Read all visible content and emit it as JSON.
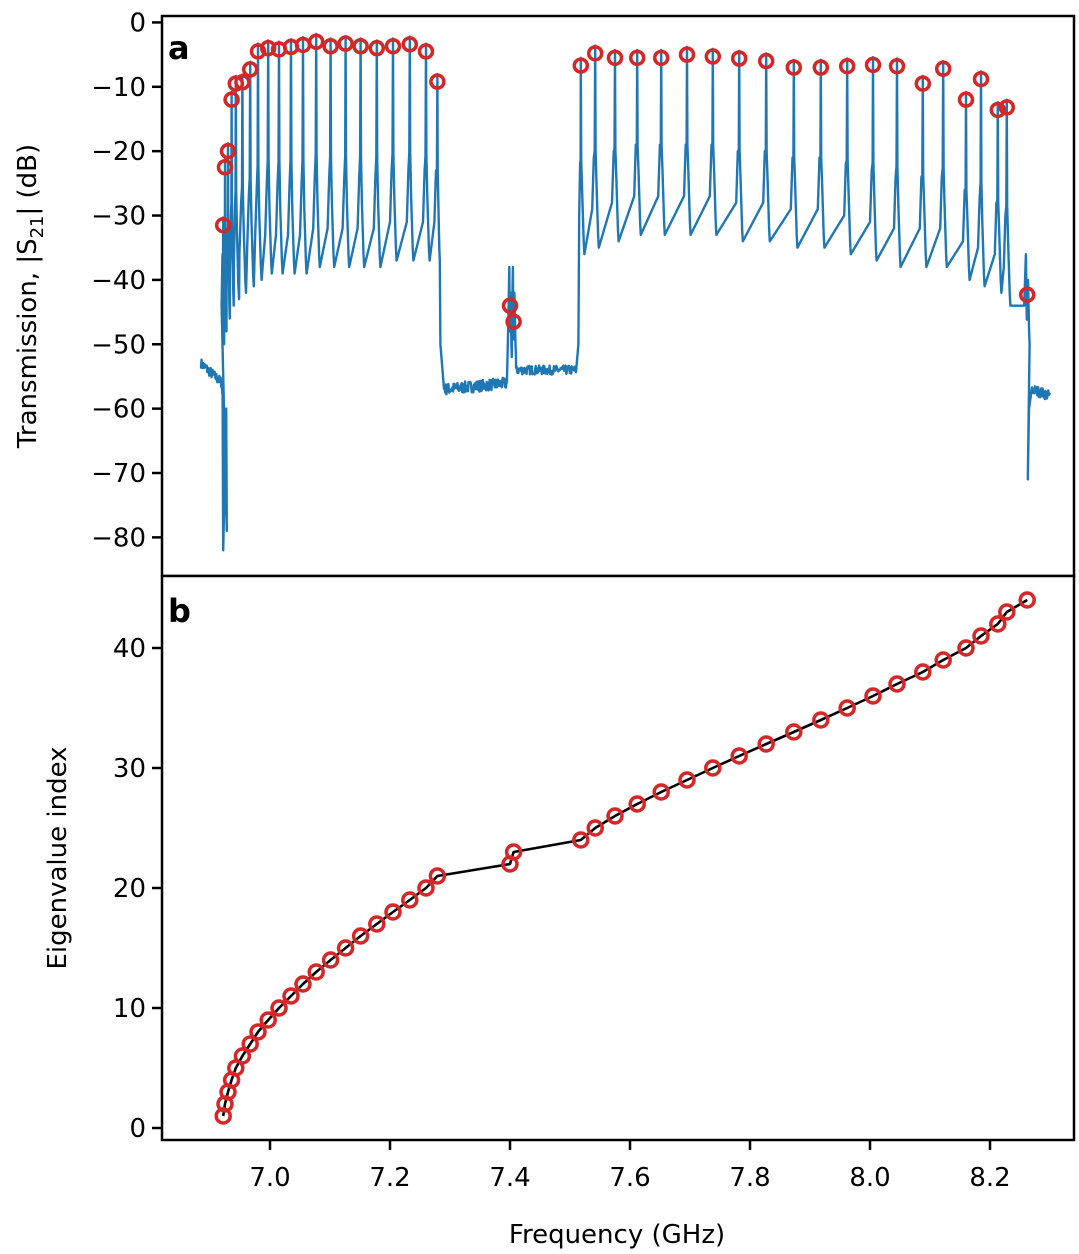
{
  "colors": {
    "trace": "#1f77b4",
    "marker": "#d62728",
    "fit_line": "#000000",
    "axes": "#000000"
  },
  "chart_data": [
    {
      "type": "line",
      "panel_label": "a",
      "xlabel": "",
      "ylabel_main": "Transmission, |S",
      "ylabel_sub": "21",
      "ylabel_tail": "| (dB)",
      "xlim": [
        6.82,
        8.34
      ],
      "ylim": [
        -86,
        1
      ],
      "xticks": [
        7.0,
        7.2,
        7.4,
        7.6,
        7.8,
        8.0,
        8.2
      ],
      "yticks": [
        0,
        -10,
        -20,
        -30,
        -40,
        -50,
        -60,
        -70,
        -80
      ],
      "ytick_labels": [
        "0",
        "−10",
        "−20",
        "−30",
        "−40",
        "−50",
        "−60",
        "−70",
        "−80"
      ],
      "legend": "none",
      "grid": false,
      "series": [
        {
          "kind": "continuous transmission trace",
          "noise_floor_segments": [
            {
              "x": [
                6.885,
                6.92
              ],
              "y": [
                -53,
                -56
              ]
            },
            {
              "x": [
                7.29,
                7.4
              ],
              "y": [
                -57,
                -56
              ]
            },
            {
              "x": [
                7.41,
                7.51
              ],
              "y": [
                -54,
                -54
              ]
            },
            {
              "x": [
                8.27,
                8.3
              ],
              "y": [
                -57,
                -58
              ]
            }
          ],
          "deep_dips": [
            {
              "x": 6.922,
              "y": -82
            },
            {
              "x": 6.928,
              "y": -79
            },
            {
              "x": 8.262,
              "y": -71
            }
          ]
        },
        {
          "kind": "resonance peaks",
          "x": [
            6.922,
            6.925,
            6.93,
            6.936,
            6.943,
            6.954,
            6.967,
            6.98,
            6.997,
            7.015,
            7.035,
            7.055,
            7.077,
            7.101,
            7.126,
            7.151,
            7.178,
            7.205,
            7.233,
            7.26,
            7.279,
            7.4,
            7.406,
            7.518,
            7.542,
            7.575,
            7.612,
            7.652,
            7.695,
            7.738,
            7.782,
            7.827,
            7.873,
            7.918,
            7.962,
            8.005,
            8.045,
            8.088,
            8.122,
            8.16,
            8.185,
            8.213,
            8.228,
            8.262
          ],
          "y": [
            -31.5,
            -22.5,
            -20,
            -12,
            -9.5,
            -9.3,
            -7.3,
            -4.5,
            -4,
            -4.2,
            -3.8,
            -3.5,
            -3,
            -3.7,
            -3.3,
            -3.7,
            -4,
            -3.7,
            -3.4,
            -4.5,
            -9.2,
            -44,
            -46.5,
            -6.7,
            -4.8,
            -5.5,
            -5.5,
            -5.5,
            -5,
            -5.3,
            -5.6,
            -6,
            -7,
            -7,
            -6.8,
            -6.6,
            -6.8,
            -9.5,
            -7.2,
            -12,
            -8.8,
            -13.6,
            -13.2,
            -42.3
          ],
          "baselines": [
            -50,
            -48,
            -46,
            -44,
            -43,
            -42,
            -41,
            -40,
            -39,
            -39,
            -39,
            -39,
            -38,
            -38,
            -38,
            -38,
            -38,
            -37,
            -37,
            -37,
            -37,
            -52,
            -52,
            -36,
            -35,
            -34,
            -33,
            -33,
            -33,
            -33,
            -34,
            -34,
            -35,
            -35,
            -36,
            -37,
            -38,
            -38,
            -38,
            -40,
            -41,
            -42,
            -44,
            -50
          ]
        }
      ]
    },
    {
      "type": "scatter",
      "panel_label": "b",
      "xlabel": "Frequency (GHz)",
      "ylabel": "Eigenvalue index",
      "xlim": [
        6.82,
        8.34
      ],
      "ylim": [
        -1,
        46
      ],
      "xticks": [
        7.0,
        7.2,
        7.4,
        7.6,
        7.8,
        8.0,
        8.2
      ],
      "xtick_labels": [
        "7.0",
        "7.2",
        "7.4",
        "7.6",
        "7.8",
        "8.0",
        "8.2"
      ],
      "yticks": [
        0,
        10,
        20,
        30,
        40
      ],
      "ytick_labels": [
        "0",
        "10",
        "20",
        "30",
        "40"
      ],
      "legend": "none",
      "grid": false,
      "series": [
        {
          "kind": "measured eigenfrequencies",
          "x": [
            6.922,
            6.925,
            6.93,
            6.936,
            6.943,
            6.954,
            6.967,
            6.98,
            6.997,
            7.015,
            7.035,
            7.055,
            7.077,
            7.101,
            7.126,
            7.151,
            7.178,
            7.205,
            7.233,
            7.26,
            7.279,
            7.4,
            7.406,
            7.518,
            7.542,
            7.575,
            7.612,
            7.652,
            7.695,
            7.738,
            7.782,
            7.827,
            7.873,
            7.918,
            7.962,
            8.005,
            8.045,
            8.088,
            8.122,
            8.16,
            8.185,
            8.213,
            8.228,
            8.262
          ],
          "y": [
            1,
            2,
            3,
            4,
            5,
            6,
            7,
            8,
            9,
            10,
            11,
            12,
            13,
            14,
            15,
            16,
            17,
            18,
            19,
            20,
            21,
            22,
            23,
            24,
            25,
            26,
            27,
            28,
            29,
            30,
            31,
            32,
            33,
            34,
            35,
            36,
            37,
            38,
            39,
            40,
            41,
            42,
            43,
            44
          ]
        },
        {
          "kind": "model curve",
          "x": [
            6.922,
            6.925,
            6.93,
            6.936,
            6.943,
            6.954,
            6.967,
            6.98,
            6.997,
            7.015,
            7.035,
            7.055,
            7.077,
            7.101,
            7.126,
            7.151,
            7.178,
            7.205,
            7.233,
            7.26,
            7.279,
            7.4,
            7.406,
            7.518,
            7.542,
            7.575,
            7.612,
            7.652,
            7.695,
            7.738,
            7.782,
            7.827,
            7.873,
            7.918,
            7.962,
            8.005,
            8.045,
            8.088,
            8.122,
            8.16,
            8.185,
            8.213,
            8.228,
            8.262
          ],
          "y": [
            1,
            2,
            3,
            4,
            5,
            6,
            7,
            8,
            9,
            10,
            11,
            12,
            13,
            14,
            15,
            16,
            17,
            18,
            19,
            20,
            21,
            22,
            23,
            24,
            25,
            26,
            27,
            28,
            29,
            30,
            31,
            32,
            33,
            34,
            35,
            36,
            37,
            38,
            39,
            40,
            41,
            42,
            43,
            44
          ]
        }
      ]
    }
  ]
}
